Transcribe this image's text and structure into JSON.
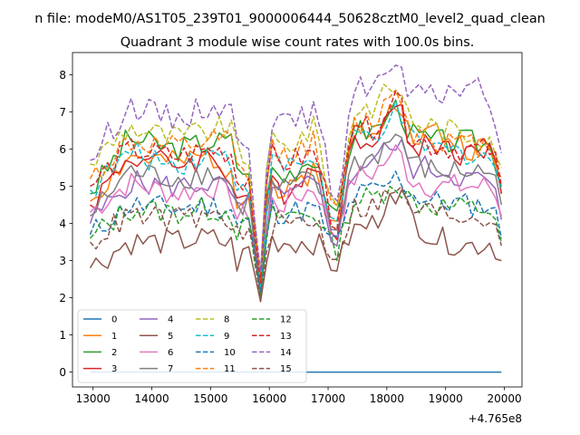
{
  "chart_data": {
    "type": "line",
    "suptitle": "n file: modeM0/AS1T05_239T01_9000006444_50628cztM0_level2_quad_clean",
    "title": "Quadrant 3 module wise count rates with 100.0s bins.",
    "xlabel": "",
    "ylabel": "",
    "x_offset_label": "+4.765e8",
    "xlim": [
      12650,
      20300
    ],
    "ylim": [
      -0.4,
      8.6
    ],
    "x_ticks": [
      13000,
      14000,
      15000,
      16000,
      17000,
      18000,
      19000,
      20000
    ],
    "y_ticks": [
      0,
      1,
      2,
      3,
      4,
      5,
      6,
      7,
      8
    ],
    "x_tick_labels": [
      "13000",
      "14000",
      "15000",
      "16000",
      "17000",
      "18000",
      "19000",
      "20000"
    ],
    "y_tick_labels": [
      "0",
      "1",
      "2",
      "3",
      "4",
      "5",
      "6",
      "7",
      "8"
    ],
    "legend_position": "lower-left",
    "legend_columns": 4,
    "x_start": 12950,
    "x_step": 100,
    "anchors_x": [
      12950,
      13600,
      14400,
      15000,
      15400,
      15500,
      15600,
      15800,
      15850,
      16000,
      16200,
      16800,
      17100,
      17200,
      17400,
      17800,
      18050,
      18200,
      18400,
      18800,
      19400,
      19800,
      19950
    ],
    "series": [
      {
        "name": "0",
        "color": "#1f77b4",
        "dash": "solid",
        "anchors": [
          0,
          0,
          0,
          0,
          0,
          0,
          0,
          0,
          0,
          0,
          0,
          0,
          0,
          0,
          0,
          0,
          0,
          0,
          0,
          0,
          0,
          0,
          0
        ]
      },
      {
        "name": "1",
        "color": "#ff7f0e",
        "dash": "solid",
        "anchors": [
          4.6,
          5.8,
          5.6,
          5.8,
          5.4,
          4.0,
          5.6,
          3.0,
          2.2,
          5.4,
          4.6,
          5.6,
          3.5,
          4.2,
          6.5,
          6.6,
          7.2,
          7.5,
          6.2,
          6.5,
          6.0,
          6.0,
          4.8
        ]
      },
      {
        "name": "2",
        "color": "#2ca02c",
        "dash": "solid",
        "anchors": [
          4.8,
          6.3,
          6.0,
          6.2,
          6.2,
          5.0,
          5.9,
          3.0,
          2.4,
          5.6,
          5.2,
          5.9,
          3.8,
          4.3,
          6.5,
          6.5,
          7.0,
          7.2,
          6.4,
          6.2,
          6.2,
          6.1,
          5.0
        ]
      },
      {
        "name": "3",
        "color": "#d62728",
        "dash": "solid",
        "anchors": [
          4.5,
          5.8,
          5.6,
          5.8,
          5.2,
          4.0,
          5.5,
          3.0,
          2.2,
          5.4,
          4.8,
          5.6,
          3.8,
          4.0,
          6.2,
          6.4,
          7.0,
          7.2,
          6.0,
          6.2,
          5.8,
          6.2,
          4.8
        ]
      },
      {
        "name": "4",
        "color": "#9467bd",
        "dash": "solid",
        "anchors": [
          4.0,
          5.1,
          5.0,
          5.1,
          4.8,
          3.8,
          5.0,
          2.9,
          2.2,
          5.0,
          4.6,
          5.1,
          3.5,
          3.8,
          5.4,
          5.8,
          6.0,
          6.2,
          5.5,
          5.5,
          5.2,
          5.1,
          4.1
        ]
      },
      {
        "name": "5",
        "color": "#8c564b",
        "dash": "solid",
        "anchors": [
          2.8,
          3.5,
          3.5,
          3.6,
          3.4,
          2.5,
          3.7,
          2.2,
          1.9,
          3.6,
          3.5,
          3.5,
          2.8,
          3.0,
          3.8,
          4.0,
          4.8,
          4.9,
          4.2,
          3.6,
          3.4,
          3.5,
          3.0
        ]
      },
      {
        "name": "6",
        "color": "#e377c2",
        "dash": "solid",
        "anchors": [
          4.3,
          5.1,
          4.8,
          5.0,
          4.8,
          3.5,
          4.8,
          2.9,
          2.1,
          4.6,
          4.5,
          5.0,
          3.6,
          3.9,
          5.2,
          5.4,
          5.8,
          6.0,
          5.2,
          5.0,
          5.0,
          5.0,
          4.2
        ]
      },
      {
        "name": "7",
        "color": "#7f7f7f",
        "dash": "solid",
        "anchors": [
          4.2,
          5.4,
          5.2,
          5.4,
          5.0,
          3.8,
          5.2,
          2.9,
          2.2,
          5.0,
          4.9,
          5.2,
          3.6,
          4.1,
          5.6,
          5.8,
          6.2,
          6.5,
          5.6,
          5.4,
          5.4,
          5.4,
          4.5
        ]
      },
      {
        "name": "8",
        "color": "#bcbd22",
        "dash": "dashed",
        "anchors": [
          5.6,
          6.6,
          6.3,
          6.5,
          6.6,
          5.2,
          6.4,
          3.3,
          2.6,
          6.4,
          6.0,
          6.6,
          4.3,
          4.6,
          7.0,
          7.2,
          7.6,
          7.7,
          6.8,
          6.6,
          6.4,
          6.4,
          5.5
        ]
      },
      {
        "name": "9",
        "color": "#17becf",
        "dash": "dashed",
        "anchors": [
          4.9,
          5.9,
          5.6,
          5.9,
          5.7,
          4.4,
          5.8,
          3.1,
          2.3,
          5.7,
          5.5,
          5.8,
          3.7,
          4.2,
          6.3,
          6.4,
          6.8,
          7.0,
          6.2,
          6.0,
          5.9,
          5.8,
          4.9
        ]
      },
      {
        "name": "10",
        "color": "#1f77b4",
        "dash": "dashed",
        "anchors": [
          3.7,
          4.5,
          4.4,
          4.5,
          4.4,
          3.5,
          4.5,
          2.6,
          2.1,
          4.4,
          4.3,
          4.4,
          3.3,
          3.6,
          4.7,
          4.9,
          5.1,
          5.3,
          4.8,
          4.6,
          4.5,
          4.5,
          3.6
        ]
      },
      {
        "name": "11",
        "color": "#ff7f0e",
        "dash": "dashed",
        "anchors": [
          5.2,
          6.2,
          6.0,
          6.2,
          6.2,
          4.6,
          6.0,
          3.2,
          2.5,
          6.1,
          5.8,
          6.2,
          4.0,
          4.4,
          6.6,
          6.8,
          7.4,
          7.7,
          6.5,
          6.3,
          6.1,
          6.1,
          5.2
        ]
      },
      {
        "name": "12",
        "color": "#2ca02c",
        "dash": "dashed",
        "anchors": [
          3.6,
          4.4,
          4.3,
          4.4,
          4.3,
          3.4,
          4.3,
          2.6,
          2.0,
          4.2,
          4.2,
          4.3,
          3.2,
          3.5,
          4.6,
          4.7,
          5.0,
          5.1,
          4.6,
          4.5,
          4.4,
          4.4,
          3.5
        ]
      },
      {
        "name": "13",
        "color": "#d62728",
        "dash": "dashed",
        "anchors": [
          5.0,
          6.0,
          5.8,
          6.0,
          5.9,
          4.5,
          5.9,
          3.2,
          2.4,
          5.9,
          5.6,
          5.9,
          3.9,
          4.3,
          6.4,
          6.6,
          7.1,
          7.3,
          6.3,
          6.1,
          6.0,
          6.0,
          5.0
        ]
      },
      {
        "name": "14",
        "color": "#9467bd",
        "dash": "dashed",
        "anchors": [
          5.7,
          7.2,
          6.8,
          7.2,
          7.0,
          5.4,
          7.2,
          3.5,
          2.7,
          7.0,
          6.6,
          7.0,
          4.6,
          5.0,
          7.6,
          7.8,
          8.1,
          8.1,
          7.4,
          7.4,
          7.8,
          7.2,
          5.9
        ]
      },
      {
        "name": "15",
        "color": "#8c564b",
        "dash": "dashed",
        "anchors": [
          3.5,
          4.2,
          4.1,
          4.2,
          4.1,
          3.2,
          4.1,
          2.5,
          1.9,
          4.0,
          4.0,
          4.1,
          3.0,
          3.3,
          4.4,
          4.5,
          4.8,
          4.9,
          4.4,
          4.3,
          4.2,
          4.2,
          3.4
        ]
      }
    ]
  }
}
